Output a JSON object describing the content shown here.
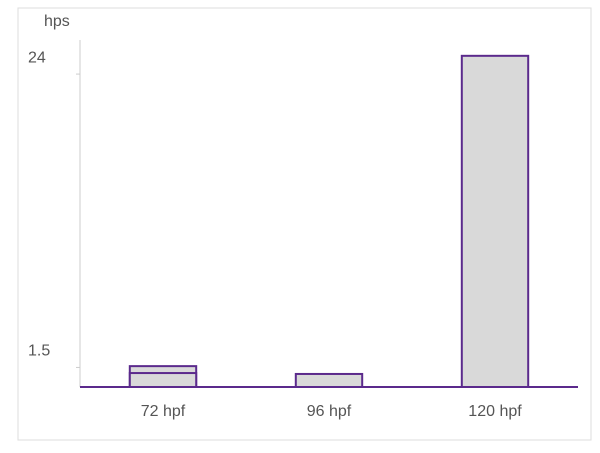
{
  "chart_data": {
    "type": "bar",
    "y_label": "hps",
    "categories": [
      "72 hpf",
      "96 hpf",
      "120 hpf"
    ],
    "series": [
      {
        "color": "#d9d9d9",
        "values": [
          1.6,
          1.0,
          25.4
        ]
      },
      {
        "color": "#d9d9d9",
        "values": [
          1.07,
          null,
          null
        ]
      }
    ],
    "edge_color": "#5b2a8c",
    "ylim": [
      0,
      26
    ],
    "yticks": [
      1.5,
      24
    ],
    "grid": false
  }
}
